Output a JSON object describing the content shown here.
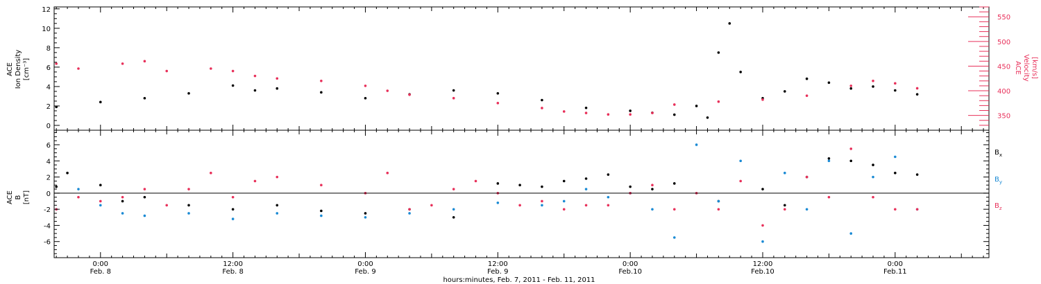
{
  "colors": {
    "black": "#000000",
    "red": "#e8305a",
    "blue": "#1a8ad4"
  },
  "chart_data": [
    {
      "type": "scatter",
      "panel": "top",
      "ylabel_left": [
        "ACE",
        "Ion Density",
        "[cm⁻³]"
      ],
      "ylabel_right": [
        "ACE",
        "Velocity",
        "[km/s]"
      ],
      "x_unit": "hours since 2011-02-07 00:00 UT",
      "xlim": [
        19.8,
        104.5
      ],
      "ylim_left": [
        -0.5,
        12.2
      ],
      "ylim_right": [
        320,
        570
      ],
      "yticks_left": [
        0,
        2,
        4,
        6,
        8,
        10,
        12
      ],
      "yticks_right": [
        350,
        400,
        450,
        500,
        550
      ],
      "series": [
        {
          "axis": "left",
          "color": "black",
          "x": [
            20,
            24,
            28,
            32,
            36,
            38,
            40,
            44,
            48,
            52,
            56,
            60,
            64,
            68,
            72,
            74,
            76,
            78,
            79,
            80,
            81,
            82,
            84,
            86,
            88,
            90,
            92,
            94,
            96,
            98
          ],
          "y": [
            1.9,
            2.4,
            2.8,
            3.3,
            4.1,
            3.6,
            3.8,
            3.4,
            2.8,
            3.2,
            3.6,
            3.3,
            2.6,
            1.8,
            1.5,
            1.3,
            1.1,
            2.0,
            0.8,
            7.5,
            10.5,
            5.5,
            2.8,
            3.5,
            4.8,
            4.4,
            3.8,
            4.0,
            3.6,
            3.2
          ]
        },
        {
          "axis": "right",
          "color": "red",
          "x": [
            20,
            22,
            26,
            28,
            30,
            34,
            36,
            38,
            40,
            44,
            48,
            50,
            52,
            56,
            60,
            64,
            66,
            68,
            70,
            72,
            74,
            76,
            80,
            84,
            88,
            92,
            94,
            96,
            98
          ],
          "y": [
            455,
            445,
            455,
            460,
            440,
            445,
            440,
            430,
            425,
            420,
            410,
            400,
            392,
            385,
            375,
            365,
            358,
            355,
            352,
            352,
            355,
            372,
            378,
            382,
            390,
            410,
            420,
            415,
            405
          ]
        }
      ]
    },
    {
      "type": "scatter",
      "panel": "bottom",
      "ylabel": [
        "ACE",
        "B",
        "[nT]"
      ],
      "x_unit": "hours since 2011-02-07 00:00 UT",
      "xlim": [
        19.8,
        104.5
      ],
      "ylim": [
        -8,
        7.8
      ],
      "yticks": [
        -6,
        -4,
        -2,
        0,
        2,
        4,
        6
      ],
      "zero_line": true,
      "legend": [
        "Bx",
        "By",
        "Bz"
      ],
      "legend_position": "right",
      "series": [
        {
          "name": "Bx",
          "color": "black",
          "x": [
            20,
            21,
            24,
            26,
            28,
            32,
            36,
            40,
            44,
            48,
            52,
            56,
            60,
            62,
            64,
            66,
            68,
            70,
            72,
            74,
            76,
            80,
            84,
            86,
            88,
            90,
            92,
            94,
            96,
            98
          ],
          "y": [
            0.8,
            2.5,
            1.0,
            -1.0,
            -0.5,
            -1.5,
            -2.0,
            -1.5,
            -2.2,
            -2.5,
            -2.0,
            -3.0,
            1.2,
            1.0,
            0.8,
            1.5,
            1.8,
            2.3,
            0.8,
            0.5,
            1.2,
            -1.0,
            0.5,
            -1.5,
            2.0,
            4.3,
            4.0,
            3.5,
            2.5,
            2.3
          ]
        },
        {
          "name": "By",
          "color": "blue",
          "x": [
            20,
            22,
            24,
            26,
            28,
            32,
            36,
            40,
            44,
            48,
            52,
            56,
            60,
            64,
            66,
            68,
            70,
            72,
            74,
            76,
            78,
            80,
            82,
            84,
            86,
            88,
            90,
            92,
            94,
            96,
            98
          ],
          "y": [
            -2.0,
            0.5,
            -1.5,
            -2.5,
            -2.8,
            -2.5,
            -3.2,
            -2.5,
            -2.8,
            -3.0,
            -2.5,
            -2.0,
            -1.2,
            -1.5,
            -1.0,
            0.5,
            -0.5,
            0.0,
            -2.0,
            -5.5,
            6.0,
            -1.0,
            4.0,
            -6.0,
            2.5,
            -2.0,
            4.0,
            -5.0,
            2.0,
            4.5,
            -2.0
          ]
        },
        {
          "name": "Bz",
          "color": "red",
          "x": [
            20,
            22,
            24,
            26,
            28,
            30,
            32,
            34,
            36,
            38,
            40,
            44,
            48,
            50,
            52,
            54,
            56,
            58,
            60,
            62,
            64,
            66,
            68,
            70,
            72,
            74,
            76,
            78,
            80,
            82,
            84,
            86,
            88,
            90,
            92,
            94,
            96,
            98
          ],
          "y": [
            -2.0,
            -0.5,
            -1.0,
            -0.5,
            0.5,
            -1.5,
            0.5,
            2.5,
            -0.5,
            1.5,
            2.0,
            1.0,
            0.0,
            2.5,
            -2.0,
            -1.5,
            0.5,
            1.5,
            0.0,
            -1.5,
            -1.0,
            -2.0,
            -1.5,
            -1.5,
            0.0,
            1.0,
            -2.0,
            0.0,
            -2.0,
            1.5,
            -4.0,
            -2.0,
            2.0,
            -0.5,
            5.5,
            -0.5,
            -2.0,
            -2.0
          ]
        }
      ]
    }
  ],
  "axis": {
    "xticks": [
      {
        "x": 24,
        "time": "0:00",
        "date": "Feb. 8"
      },
      {
        "x": 36,
        "time": "12:00",
        "date": "Feb. 8"
      },
      {
        "x": 48,
        "time": "0:00",
        "date": "Feb. 9"
      },
      {
        "x": 60,
        "time": "12:00",
        "date": "Feb. 9"
      },
      {
        "x": 72,
        "time": "0:00",
        "date": "Feb.10"
      },
      {
        "x": 84,
        "time": "12:00",
        "date": "Feb.10"
      },
      {
        "x": 96,
        "time": "0:00",
        "date": "Feb.11"
      }
    ],
    "xlabel": "hours:minutes, Feb. 7, 2011 - Feb. 11, 2011"
  },
  "legend_labels": {
    "bx": {
      "main": "B",
      "sub": "x"
    },
    "by": {
      "main": "B",
      "sub": "y"
    },
    "bz": {
      "main": "B",
      "sub": "z"
    }
  }
}
